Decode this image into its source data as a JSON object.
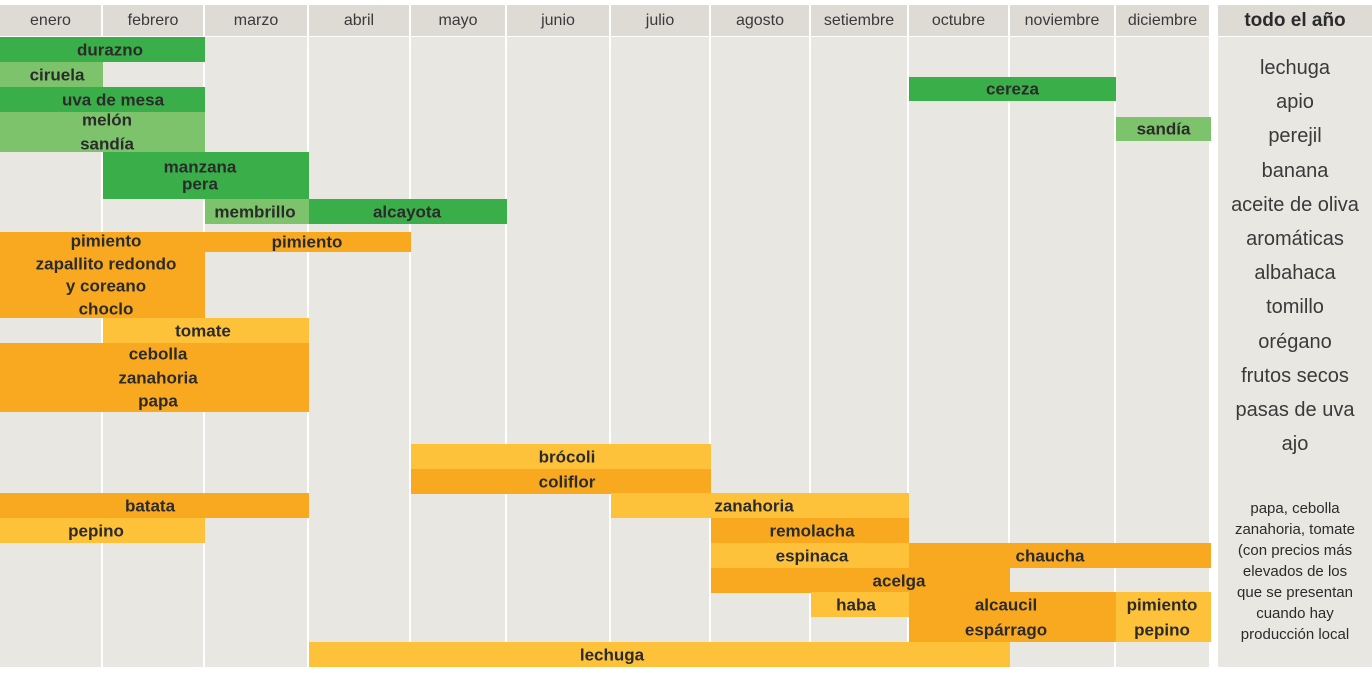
{
  "chart_data": {
    "type": "gantt",
    "title": "",
    "months": [
      "enero",
      "febrero",
      "marzo",
      "abril",
      "mayo",
      "junio",
      "julio",
      "agosto",
      "setiembre",
      "octubre",
      "noviembre",
      "diciembre"
    ],
    "groups": [
      {
        "label": "durazno",
        "color": "#3aae49",
        "bars": [
          [
            0,
            1
          ]
        ]
      },
      {
        "label": "ciruela",
        "color": "#7dc36b",
        "bars": [
          [
            0,
            0
          ]
        ]
      },
      {
        "label": "uva de mesa",
        "color": "#3aae49",
        "bars": [
          [
            0,
            1
          ]
        ]
      },
      {
        "label": "cereza",
        "color": "#3aae49",
        "bars": [
          [
            9,
            10
          ]
        ]
      },
      {
        "label": "melón\nsandía",
        "color": "#7dc36b",
        "bars": [
          [
            0,
            1
          ]
        ]
      },
      {
        "label": "sandía",
        "color": "#7dc36b",
        "bars": [
          [
            11,
            11
          ]
        ]
      },
      {
        "label": "manzana\npera",
        "color": "#3aae49",
        "bars": [
          [
            1,
            2
          ]
        ]
      },
      {
        "label": "membrillo",
        "color": "#7dc36b",
        "bars": [
          [
            2,
            2
          ]
        ]
      },
      {
        "label": "alcayota",
        "color": "#3aae49",
        "bars": [
          [
            3,
            4
          ]
        ]
      },
      {
        "label": "pimiento\nzapallito redondo\ny coreano\nchoclo",
        "color": "#f9a91f",
        "bars": [
          [
            0,
            1
          ]
        ]
      },
      {
        "label": "pimiento",
        "color": "#f9a91f",
        "bars": [
          [
            2,
            3
          ]
        ]
      },
      {
        "label": "tomate",
        "color": "#fdc23a",
        "bars": [
          [
            1,
            2
          ]
        ]
      },
      {
        "label": "cebolla\nzanahoria\npapa",
        "color": "#f9a91f",
        "bars": [
          [
            0,
            2
          ]
        ]
      },
      {
        "label": "brócoli",
        "color": "#fdc23a",
        "bars": [
          [
            4,
            6
          ]
        ]
      },
      {
        "label": "coliflor",
        "color": "#f9a91f",
        "bars": [
          [
            4,
            6
          ]
        ]
      },
      {
        "label": "batata",
        "color": "#f9a91f",
        "bars": [
          [
            0,
            2
          ]
        ]
      },
      {
        "label": "zanahoria",
        "color": "#fdc23a",
        "bars": [
          [
            6,
            8
          ]
        ]
      },
      {
        "label": "pepino",
        "color": "#fdc23a",
        "bars": [
          [
            0,
            1
          ]
        ]
      },
      {
        "label": "remolacha",
        "color": "#f9a91f",
        "bars": [
          [
            7,
            8
          ]
        ]
      },
      {
        "label": "espinaca",
        "color": "#fdc23a",
        "bars": [
          [
            7,
            8
          ]
        ]
      },
      {
        "label": "chaucha",
        "color": "#f9a91f",
        "bars": [
          [
            9,
            11
          ]
        ]
      },
      {
        "label": "acelga",
        "color": "#f9a91f",
        "bars": [
          [
            7,
            9
          ]
        ]
      },
      {
        "label": "haba",
        "color": "#fdc23a",
        "bars": [
          [
            8,
            8
          ]
        ]
      },
      {
        "label": "alcaucil\nespárrago",
        "color": "#f9a91f",
        "bars": [
          [
            9,
            10
          ]
        ]
      },
      {
        "label": "pimiento\npepino",
        "color": "#fdc23a",
        "bars": [
          [
            11,
            11
          ]
        ]
      },
      {
        "label": "lechuga",
        "color": "#fdc23a",
        "bars": [
          [
            3,
            9
          ]
        ]
      }
    ],
    "year_round_title": "todo el año",
    "year_round": [
      "lechuga",
      "apio",
      "perejil",
      "banana",
      "aceite de oliva",
      "aromáticas",
      "albahaca",
      "tomillo",
      "orégano",
      "frutos secos",
      "pasas de uva",
      "ajo"
    ],
    "note": "papa, cebolla\nzanahoria, tomate\n(con precios más\nelevados de los\nque se presentan\ncuando hay\nproducción local"
  }
}
